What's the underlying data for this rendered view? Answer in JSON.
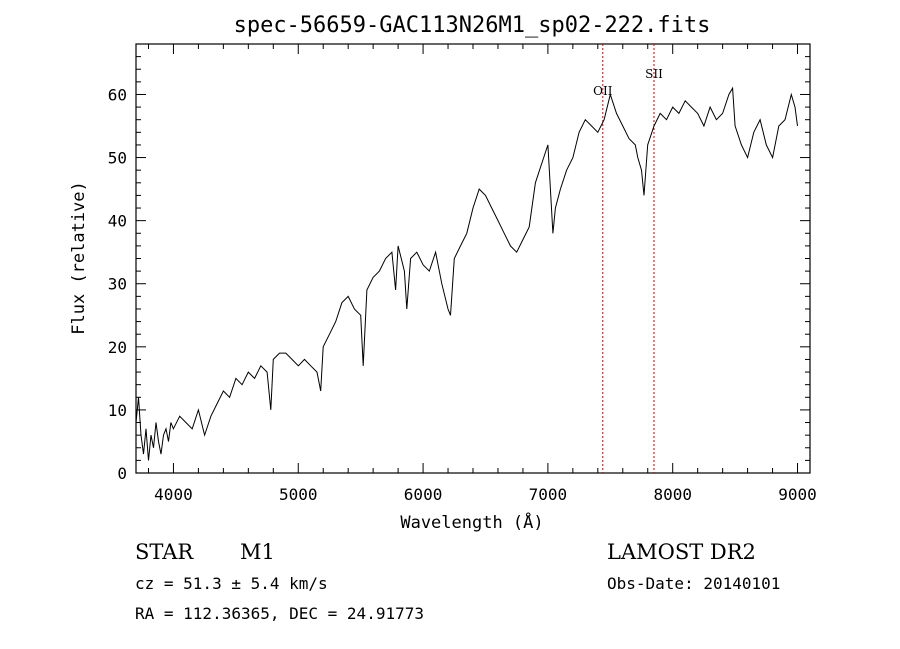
{
  "chart_data": {
    "type": "line",
    "title": "spec-56659-GAC113N26M1_sp02-222.fits",
    "xlabel": "Wavelength (Å)",
    "ylabel": "Flux (relative)",
    "xlim": [
      3700,
      9100
    ],
    "ylim": [
      0,
      68
    ],
    "xticks": [
      "4000",
      "5000",
      "6000",
      "7000",
      "8000",
      "9000"
    ],
    "yticks": [
      "0",
      "10",
      "20",
      "30",
      "40",
      "50",
      "60"
    ],
    "grid": false,
    "series": [
      {
        "x": [
          3700,
          3720,
          3740,
          3760,
          3780,
          3800,
          3820,
          3840,
          3860,
          3880,
          3900,
          3920,
          3940,
          3960,
          3980,
          4000,
          4050,
          4100,
          4150,
          4200,
          4250,
          4300,
          4350,
          4400,
          4450,
          4500,
          4550,
          4600,
          4650,
          4700,
          4750,
          4780,
          4800,
          4850,
          4900,
          4950,
          5000,
          5050,
          5100,
          5150,
          5180,
          5200,
          5250,
          5300,
          5350,
          5400,
          5450,
          5500,
          5520,
          5550,
          5600,
          5650,
          5700,
          5750,
          5780,
          5800,
          5850,
          5870,
          5900,
          5950,
          6000,
          6050,
          6100,
          6150,
          6200,
          6220,
          6250,
          6300,
          6350,
          6400,
          6450,
          6500,
          6550,
          6600,
          6650,
          6700,
          6750,
          6800,
          6850,
          6900,
          6950,
          7000,
          7040,
          7060,
          7100,
          7150,
          7200,
          7250,
          7300,
          7350,
          7400,
          7450,
          7500,
          7550,
          7600,
          7650,
          7700,
          7720,
          7750,
          7770,
          7800,
          7850,
          7900,
          7950,
          8000,
          8050,
          8100,
          8150,
          8200,
          8250,
          8300,
          8350,
          8400,
          8450,
          8480,
          8500,
          8550,
          8600,
          8650,
          8700,
          8750,
          8800,
          8850,
          8900,
          8950,
          8980,
          9000
        ],
        "y": [
          8,
          12,
          6,
          3,
          7,
          2,
          6,
          4,
          8,
          5,
          3,
          6,
          7,
          5,
          8,
          7,
          9,
          8,
          7,
          10,
          6,
          9,
          11,
          13,
          12,
          15,
          14,
          16,
          15,
          17,
          16,
          10,
          18,
          19,
          19,
          18,
          17,
          18,
          17,
          16,
          13,
          20,
          22,
          24,
          27,
          28,
          26,
          25,
          17,
          29,
          31,
          32,
          34,
          35,
          29,
          36,
          32,
          26,
          34,
          35,
          33,
          32,
          35,
          30,
          26,
          25,
          34,
          36,
          38,
          42,
          45,
          44,
          42,
          40,
          38,
          36,
          35,
          37,
          39,
          46,
          49,
          52,
          38,
          42,
          45,
          48,
          50,
          54,
          56,
          55,
          54,
          56,
          60,
          57,
          55,
          53,
          52,
          50,
          48,
          44,
          52,
          55,
          57,
          56,
          58,
          57,
          59,
          58,
          57,
          55,
          58,
          56,
          57,
          60,
          61,
          55,
          52,
          50,
          54,
          56,
          52,
          50,
          55,
          56,
          60,
          58,
          55
        ]
      }
    ],
    "annotations": [
      {
        "label": "OII",
        "x": 7440
      },
      {
        "label": "SII",
        "x": 7850
      }
    ],
    "line_color": "#000000",
    "marker_color": "#cc0000"
  },
  "info": {
    "object_type": "STAR",
    "subclass": "M1",
    "survey": "LAMOST DR2",
    "cz": "cz = 51.3 ± 5.4 km/s",
    "obs_date": "Obs-Date: 20140101",
    "coords": "RA = 112.36365, DEC =  24.91773"
  }
}
